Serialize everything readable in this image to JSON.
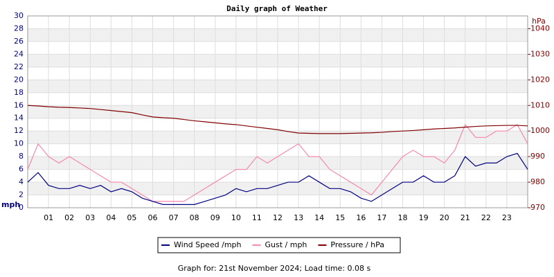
{
  "chart_data": {
    "type": "line",
    "title": "Daily graph of Weather",
    "y_label": "mph",
    "y2_label": "hPa",
    "footer": "Graph for: 21st November 2024; Load time: 0.08 s",
    "x": [
      0,
      0.5,
      1,
      1.5,
      2,
      2.5,
      3,
      3.5,
      4,
      4.5,
      5,
      5.5,
      6,
      6.5,
      7,
      7.5,
      8,
      8.5,
      9,
      9.5,
      10,
      10.5,
      11,
      11.5,
      12,
      12.5,
      13,
      13.5,
      14,
      14.5,
      15,
      15.5,
      16,
      16.5,
      17,
      17.5,
      18,
      18.5,
      19,
      19.5,
      20,
      20.5,
      21,
      21.5,
      22,
      22.5,
      23,
      23.5,
      24
    ],
    "xlim": [
      0,
      24
    ],
    "xticks": [
      {
        "value": 1,
        "label": "01"
      },
      {
        "value": 2,
        "label": "02"
      },
      {
        "value": 3,
        "label": "03"
      },
      {
        "value": 4,
        "label": "04"
      },
      {
        "value": 5,
        "label": "05"
      },
      {
        "value": 6,
        "label": "06"
      },
      {
        "value": 7,
        "label": "07"
      },
      {
        "value": 8,
        "label": "08"
      },
      {
        "value": 9,
        "label": "09"
      },
      {
        "value": 10,
        "label": "10"
      },
      {
        "value": 11,
        "label": "11"
      },
      {
        "value": 12,
        "label": "12"
      },
      {
        "value": 13,
        "label": "13"
      },
      {
        "value": 14,
        "label": "14"
      },
      {
        "value": 15,
        "label": "15"
      },
      {
        "value": 16,
        "label": "16"
      },
      {
        "value": 17,
        "label": "17"
      },
      {
        "value": 18,
        "label": "18"
      },
      {
        "value": 19,
        "label": "19"
      },
      {
        "value": 20,
        "label": "20"
      },
      {
        "value": 21,
        "label": "21"
      },
      {
        "value": 22,
        "label": "22"
      },
      {
        "value": 23,
        "label": "23"
      }
    ],
    "ylim": [
      0,
      30
    ],
    "yticks": [
      0,
      2,
      4,
      6,
      8,
      10,
      12,
      14,
      16,
      18,
      20,
      22,
      24,
      26,
      28,
      30
    ],
    "y2lim": [
      970,
      1045
    ],
    "y2ticks": [
      970,
      980,
      990,
      1000,
      1010,
      1020,
      1030,
      1040
    ],
    "grid": true,
    "series": [
      {
        "name": "Gust / mph",
        "color": "#f788b0",
        "values": [
          6,
          10,
          8,
          7,
          8,
          7,
          6,
          5,
          4,
          4,
          3,
          2,
          1,
          1,
          1,
          1,
          2,
          3,
          4,
          5,
          6,
          6,
          8,
          7,
          8,
          9,
          10,
          8,
          8,
          6,
          5,
          4,
          3,
          2,
          4,
          6,
          8,
          9,
          8,
          8,
          7,
          9,
          13,
          11,
          11,
          12,
          12,
          13,
          10
        ]
      },
      {
        "name": "Wind Speed /mph",
        "color": "#000080",
        "values": [
          4,
          5.5,
          3.5,
          3,
          3,
          3.5,
          3,
          3.5,
          2.5,
          3,
          2.5,
          1.5,
          1,
          0.5,
          0.5,
          0.5,
          0.5,
          1,
          1.5,
          2,
          3,
          2.5,
          3,
          3,
          3.5,
          4,
          4,
          5,
          4,
          3,
          3,
          2.5,
          1.5,
          1,
          2,
          3,
          4,
          4,
          5,
          4,
          4,
          5,
          8,
          6.5,
          7,
          7,
          8,
          8.5,
          6
        ]
      },
      {
        "name": "Pressure / hPa",
        "color": "#800000",
        "axis": "y2",
        "values": [
          1010,
          1009.8,
          1009.5,
          1009.3,
          1009.2,
          1009,
          1008.8,
          1008.4,
          1008,
          1007.6,
          1007.2,
          1006.3,
          1005.5,
          1005.2,
          1005,
          1004.5,
          1004,
          1003.6,
          1003.2,
          1002.8,
          1002.5,
          1002,
          1001.5,
          1001,
          1000.5,
          999.8,
          999.2,
          999.1,
          999,
          999,
          999,
          999.1,
          999.2,
          999.3,
          999.5,
          999.8,
          1000,
          1000.2,
          1000.5,
          1000.8,
          1001,
          1001.2,
          1001.5,
          1001.8,
          1002,
          1002.1,
          1002.2,
          1002.2,
          1002
        ]
      }
    ],
    "legend_order": [
      1,
      0,
      2
    ]
  }
}
